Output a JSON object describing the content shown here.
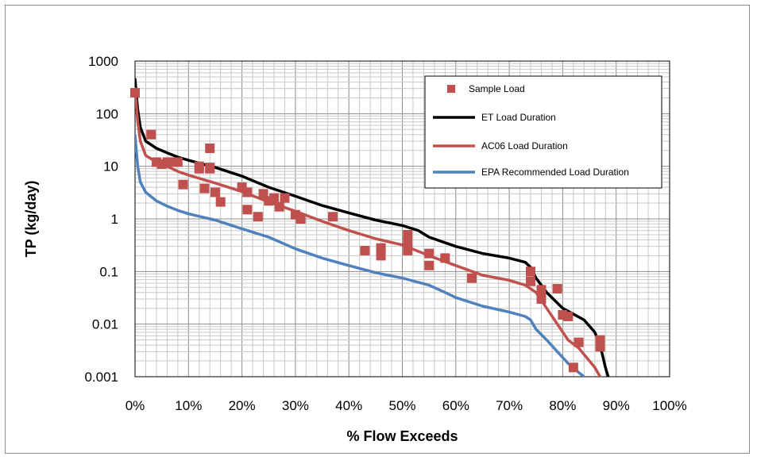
{
  "chart_data": {
    "type": "scatter",
    "title": "",
    "xlabel": "% Flow Exceeds",
    "ylabel": "TP (kg/day)",
    "x_ticks": [
      0,
      10,
      20,
      30,
      40,
      50,
      60,
      70,
      80,
      90,
      100
    ],
    "x_tick_labels": [
      "0%",
      "10%",
      "20%",
      "30%",
      "40%",
      "50%",
      "60%",
      "70%",
      "80%",
      "90%",
      "100%"
    ],
    "y_ticks": [
      0.001,
      0.01,
      0.1,
      1,
      10,
      100,
      1000
    ],
    "y_tick_labels": [
      "0.001",
      "0.01",
      "0.1",
      "1",
      "10",
      "100",
      "1000"
    ],
    "xlim": [
      0,
      100
    ],
    "ylim": [
      0.001,
      1000
    ],
    "y_scale": "log",
    "grid": true,
    "legend_position": "top-right",
    "series": [
      {
        "name": "Sample Load",
        "kind": "markers",
        "color": "#c0504d",
        "points": [
          [
            0,
            250
          ],
          [
            3,
            40
          ],
          [
            4,
            12
          ],
          [
            5,
            11
          ],
          [
            6,
            12
          ],
          [
            7,
            12
          ],
          [
            8,
            12
          ],
          [
            9,
            4.5
          ],
          [
            12,
            10
          ],
          [
            12,
            9
          ],
          [
            13,
            3.8
          ],
          [
            14,
            22
          ],
          [
            14,
            9.5
          ],
          [
            14,
            9
          ],
          [
            15,
            3.2
          ],
          [
            16,
            2.1
          ],
          [
            20,
            4
          ],
          [
            21,
            3.2
          ],
          [
            21,
            1.5
          ],
          [
            23,
            1.1
          ],
          [
            24,
            3
          ],
          [
            25,
            2.2
          ],
          [
            26,
            2.5
          ],
          [
            27,
            1.7
          ],
          [
            28,
            2.5
          ],
          [
            30,
            1.2
          ],
          [
            31,
            1.0
          ],
          [
            37,
            1.1
          ],
          [
            43,
            0.25
          ],
          [
            46,
            0.28
          ],
          [
            46,
            0.2
          ],
          [
            51,
            0.5
          ],
          [
            51,
            0.35
          ],
          [
            51,
            0.25
          ],
          [
            55,
            0.22
          ],
          [
            55,
            0.13
          ],
          [
            58,
            0.18
          ],
          [
            63,
            0.075
          ],
          [
            74,
            0.1
          ],
          [
            74,
            0.065
          ],
          [
            76,
            0.045
          ],
          [
            76,
            0.03
          ],
          [
            79,
            0.047
          ],
          [
            80,
            0.015
          ],
          [
            81,
            0.014
          ],
          [
            82,
            0.0015
          ],
          [
            83,
            0.0045
          ],
          [
            87,
            0.005
          ],
          [
            87,
            0.0037
          ]
        ]
      },
      {
        "name": "ET Load Duration",
        "kind": "line",
        "color": "#000000",
        "points": [
          [
            0,
            450
          ],
          [
            0.5,
            120
          ],
          [
            1,
            55
          ],
          [
            2,
            30
          ],
          [
            4,
            22
          ],
          [
            6,
            18
          ],
          [
            8,
            15
          ],
          [
            10,
            13
          ],
          [
            15,
            9.5
          ],
          [
            20,
            6.5
          ],
          [
            25,
            4
          ],
          [
            30,
            2.7
          ],
          [
            35,
            1.8
          ],
          [
            40,
            1.3
          ],
          [
            45,
            0.95
          ],
          [
            50,
            0.75
          ],
          [
            53,
            0.6
          ],
          [
            55,
            0.45
          ],
          [
            60,
            0.3
          ],
          [
            65,
            0.22
          ],
          [
            70,
            0.18
          ],
          [
            73,
            0.15
          ],
          [
            74,
            0.12
          ],
          [
            75,
            0.075
          ],
          [
            77,
            0.04
          ],
          [
            80,
            0.02
          ],
          [
            84,
            0.012
          ],
          [
            86,
            0.007
          ],
          [
            87,
            0.004
          ],
          [
            88,
            0.0015
          ],
          [
            88.5,
            0.001
          ]
        ]
      },
      {
        "name": "AC06 Load Duration",
        "kind": "line",
        "color": "#c0504d",
        "points": [
          [
            0,
            300
          ],
          [
            0.5,
            70
          ],
          [
            1,
            30
          ],
          [
            2,
            16
          ],
          [
            4,
            12
          ],
          [
            6,
            10
          ],
          [
            8,
            8
          ],
          [
            10,
            6.8
          ],
          [
            15,
            4.8
          ],
          [
            20,
            3.3
          ],
          [
            25,
            2.1
          ],
          [
            30,
            1.4
          ],
          [
            35,
            0.9
          ],
          [
            40,
            0.6
          ],
          [
            45,
            0.42
          ],
          [
            50,
            0.32
          ],
          [
            55,
            0.2
          ],
          [
            60,
            0.13
          ],
          [
            65,
            0.085
          ],
          [
            70,
            0.068
          ],
          [
            73,
            0.055
          ],
          [
            75,
            0.04
          ],
          [
            77,
            0.02
          ],
          [
            79,
            0.01
          ],
          [
            81,
            0.005
          ],
          [
            83,
            0.0035
          ],
          [
            85,
            0.002
          ],
          [
            86,
            0.0015
          ],
          [
            87,
            0.001
          ]
        ]
      },
      {
        "name": "EPA Recommended Load Duration",
        "kind": "line",
        "color": "#4f81bd",
        "points": [
          [
            0,
            38
          ],
          [
            0.5,
            10
          ],
          [
            1,
            5
          ],
          [
            2,
            3.2
          ],
          [
            4,
            2.2
          ],
          [
            6,
            1.75
          ],
          [
            8,
            1.45
          ],
          [
            10,
            1.25
          ],
          [
            15,
            0.95
          ],
          [
            20,
            0.65
          ],
          [
            25,
            0.45
          ],
          [
            30,
            0.27
          ],
          [
            35,
            0.18
          ],
          [
            40,
            0.13
          ],
          [
            45,
            0.095
          ],
          [
            50,
            0.075
          ],
          [
            55,
            0.055
          ],
          [
            58,
            0.04
          ],
          [
            60,
            0.032
          ],
          [
            65,
            0.022
          ],
          [
            70,
            0.017
          ],
          [
            73,
            0.014
          ],
          [
            74,
            0.012
          ],
          [
            75,
            0.008
          ],
          [
            77,
            0.005
          ],
          [
            79,
            0.003
          ],
          [
            81,
            0.0018
          ],
          [
            83,
            0.0012
          ],
          [
            84,
            0.001
          ]
        ]
      }
    ]
  }
}
